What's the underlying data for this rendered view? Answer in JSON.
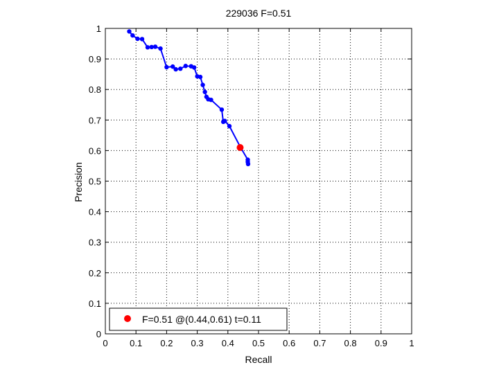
{
  "chart_data": {
    "type": "line",
    "title": "229036 F=0.51",
    "xlabel": "Recall",
    "ylabel": "Precision",
    "xlim": [
      0,
      1
    ],
    "ylim": [
      0,
      1
    ],
    "xticks": [
      "0",
      "0.1",
      "0.2",
      "0.3",
      "0.4",
      "0.5",
      "0.6",
      "0.7",
      "0.8",
      "0.9",
      "1"
    ],
    "yticks": [
      "0",
      "0.1",
      "0.2",
      "0.3",
      "0.4",
      "0.5",
      "0.6",
      "0.7",
      "0.8",
      "0.9",
      "1"
    ],
    "grid": true,
    "grid_style": "dotted",
    "legend_position": "bottom-left",
    "series": [
      {
        "color": "#0000ff",
        "marker": "circle",
        "x": [
          0.078,
          0.089,
          0.105,
          0.12,
          0.138,
          0.151,
          0.163,
          0.18,
          0.2,
          0.22,
          0.23,
          0.245,
          0.262,
          0.28,
          0.29,
          0.3,
          0.31,
          0.318,
          0.325,
          0.33,
          0.336,
          0.345,
          0.38,
          0.385,
          0.39,
          0.405,
          0.44,
          0.465,
          0.465,
          0.466
        ],
        "y": [
          0.99,
          0.977,
          0.966,
          0.965,
          0.938,
          0.939,
          0.94,
          0.934,
          0.873,
          0.875,
          0.866,
          0.868,
          0.877,
          0.876,
          0.872,
          0.843,
          0.841,
          0.815,
          0.792,
          0.776,
          0.768,
          0.766,
          0.734,
          0.694,
          0.697,
          0.68,
          0.613,
          0.57,
          0.563,
          0.556
        ]
      }
    ],
    "best_point": {
      "x": 0.44,
      "y": 0.61,
      "color": "#ff0000",
      "label": "F=0.51 @(0.44,0.61) t=0.11"
    }
  }
}
